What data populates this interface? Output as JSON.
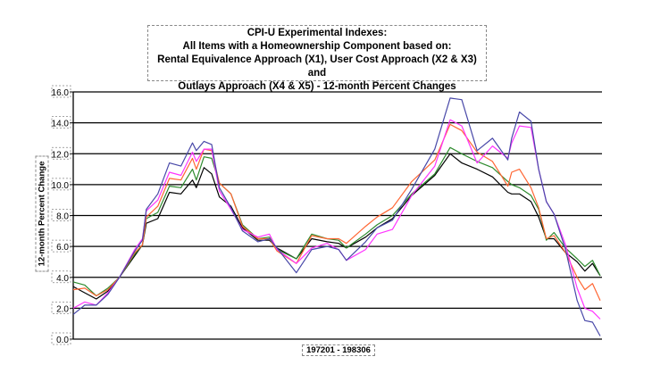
{
  "chart_data": {
    "type": "line",
    "title_lines": [
      "CPI-U Experimental Indexes:",
      "All Items with a Homeownership Component based on:",
      "Rental Equivalence Approach (X1), User Cost Approach (X2 & X3) and",
      "Outlays Approach (X4 & X5) - 12-month Percent Changes"
    ],
    "xlabel": "197201 - 198306",
    "ylabel": "12-month Percent Change",
    "ylim": [
      0,
      16
    ],
    "yticks": [
      "0.0",
      "2.0",
      "4.0",
      "6.0",
      "8.0",
      "10.0",
      "12.0",
      "14.0",
      "16.0"
    ],
    "xlim": [
      "1972-01",
      "1983-06"
    ],
    "grid": "horizontal",
    "legend": "none",
    "x": [
      "1972-01",
      "1972-04",
      "1972-07",
      "1972-10",
      "1973-01",
      "1973-05",
      "1973-07",
      "1973-08",
      "1973-11",
      "1974-02",
      "1974-05",
      "1974-08",
      "1974-09",
      "1974-11",
      "1975-01",
      "1975-03",
      "1975-06",
      "1975-09",
      "1976-01",
      "1976-04",
      "1976-06",
      "1976-11",
      "1977-03",
      "1977-07",
      "1977-10",
      "1977-12",
      "1978-05",
      "1978-08",
      "1978-12",
      "1979-05",
      "1979-11",
      "1980-03",
      "1980-06",
      "1980-10",
      "1981-02",
      "1981-06",
      "1981-07",
      "1981-09",
      "1981-12",
      "1982-02",
      "1982-04",
      "1982-06",
      "1982-09",
      "1982-12",
      "1983-02",
      "1983-04",
      "1983-06"
    ],
    "series": [
      {
        "color": "#000000",
        "values": [
          3.4,
          3.0,
          2.6,
          3.1,
          4.0,
          5.4,
          6.1,
          7.5,
          7.8,
          9.5,
          9.4,
          10.3,
          9.8,
          11.1,
          10.7,
          9.2,
          8.6,
          7.2,
          6.4,
          6.4,
          5.9,
          5.2,
          6.5,
          6.3,
          6.2,
          5.9,
          6.6,
          7.2,
          7.8,
          9.3,
          10.6,
          12.0,
          11.4,
          11.0,
          10.5,
          9.5,
          9.4,
          9.4,
          8.9,
          7.9,
          6.5,
          6.5,
          5.6,
          5.0,
          4.4,
          4.9,
          4.1
        ]
      },
      {
        "color": "#2e8b2e",
        "values": [
          3.7,
          3.5,
          2.8,
          3.3,
          4.0,
          5.5,
          6.1,
          7.8,
          8.2,
          9.9,
          9.8,
          11.0,
          10.3,
          11.8,
          11.7,
          10.1,
          9.4,
          7.4,
          6.5,
          6.6,
          5.8,
          5.2,
          6.8,
          6.5,
          6.4,
          5.9,
          6.8,
          7.4,
          8.0,
          9.4,
          10.7,
          12.4,
          12.0,
          11.5,
          11.1,
          10.2,
          10.0,
          9.8,
          9.3,
          8.4,
          6.4,
          6.9,
          5.9,
          5.2,
          4.7,
          5.1,
          4.1
        ]
      },
      {
        "color": "#ff6633",
        "values": [
          3.2,
          3.3,
          2.8,
          3.2,
          4.0,
          5.6,
          6.1,
          7.9,
          8.6,
          10.4,
          10.3,
          11.7,
          11.0,
          12.3,
          12.2,
          10.1,
          9.4,
          7.3,
          6.5,
          6.5,
          5.7,
          4.9,
          6.7,
          6.5,
          6.5,
          6.2,
          7.3,
          7.9,
          8.5,
          10.2,
          11.6,
          13.9,
          13.5,
          12.1,
          11.5,
          9.9,
          10.8,
          11.0,
          9.8,
          8.5,
          6.5,
          6.7,
          5.6,
          4.0,
          3.2,
          3.6,
          2.5
        ]
      },
      {
        "color": "#ff33ff",
        "values": [
          2.0,
          2.4,
          2.2,
          3.0,
          4.0,
          5.8,
          6.5,
          8.3,
          9.0,
          10.8,
          10.6,
          12.1,
          11.5,
          12.3,
          12.3,
          9.6,
          8.4,
          7.1,
          6.6,
          6.8,
          5.8,
          4.9,
          5.9,
          6.2,
          5.8,
          5.1,
          5.8,
          6.8,
          7.1,
          9.3,
          11.2,
          14.2,
          13.8,
          11.4,
          12.5,
          11.7,
          12.7,
          13.8,
          13.7,
          11.0,
          8.9,
          8.1,
          6.1,
          3.3,
          2.0,
          1.8,
          1.3
        ]
      },
      {
        "color": "#4848a8",
        "values": [
          1.6,
          2.2,
          2.2,
          2.9,
          4.0,
          5.7,
          6.4,
          8.4,
          9.4,
          11.4,
          11.2,
          12.7,
          12.2,
          12.8,
          12.6,
          9.8,
          8.5,
          7.0,
          6.3,
          6.5,
          5.9,
          4.3,
          5.8,
          6.0,
          5.8,
          5.1,
          6.3,
          7.2,
          7.7,
          9.7,
          12.3,
          15.6,
          15.5,
          12.2,
          13.0,
          11.6,
          13.0,
          14.7,
          14.1,
          11.0,
          8.9,
          8.1,
          5.8,
          2.5,
          1.2,
          1.1,
          0.2
        ]
      }
    ]
  }
}
